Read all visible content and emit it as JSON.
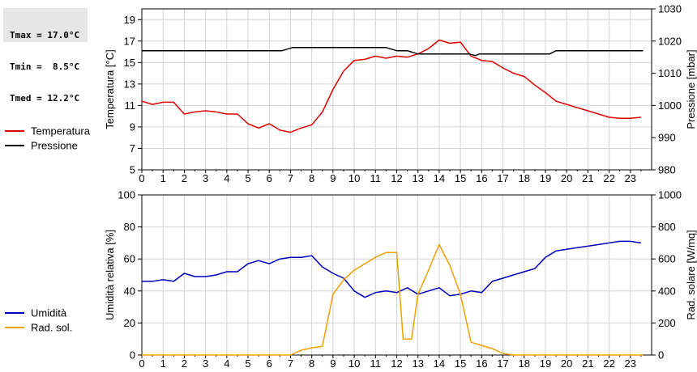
{
  "stats": [
    "Tmax = 17.0°C",
    "Tmin =  8.5°C",
    "Tmed = 12.2°C"
  ],
  "chart_data": [
    {
      "type": "line",
      "x_label_values": [
        0,
        1,
        2,
        3,
        4,
        5,
        6,
        7,
        8,
        9,
        10,
        11,
        12,
        13,
        14,
        15,
        16,
        17,
        18,
        19,
        20,
        21,
        22,
        23
      ],
      "xlim": [
        0,
        24
      ],
      "y_left": {
        "label": "Temperatura [°C]",
        "lim": [
          5,
          20
        ],
        "ticks": [
          5,
          7,
          9,
          11,
          13,
          15,
          17,
          19
        ]
      },
      "y_right": {
        "label": "Pressione [mbar]",
        "lim": [
          980,
          1030
        ],
        "ticks": [
          980,
          990,
          1000,
          1010,
          1020,
          1030
        ]
      },
      "grid": true,
      "legend_placement": "left",
      "series": [
        {
          "name": "Temperatura",
          "color": "#dd0000",
          "axis": "left",
          "x": [
            0,
            0.5,
            1,
            1.5,
            2,
            2.5,
            3,
            3.5,
            4,
            4.5,
            5,
            5.5,
            6,
            6.5,
            7,
            7.5,
            8,
            8.5,
            9,
            9.5,
            10,
            10.5,
            11,
            11.5,
            12,
            12.5,
            13,
            13.5,
            14,
            14.5,
            15,
            15.5,
            16,
            16.5,
            17,
            17.5,
            18,
            18.5,
            19,
            19.5,
            20,
            20.5,
            21,
            21.5,
            22,
            22.5,
            23,
            23.5
          ],
          "y": [
            11.4,
            11.1,
            11.3,
            11.3,
            10.2,
            10.4,
            10.5,
            10.4,
            10.2,
            10.2,
            9.3,
            8.9,
            9.3,
            8.7,
            8.5,
            8.9,
            9.2,
            10.4,
            12.5,
            14.2,
            15.2,
            15.3,
            15.6,
            15.4,
            15.6,
            15.5,
            15.8,
            16.3,
            17.1,
            16.8,
            16.9,
            15.6,
            15.2,
            15.1,
            14.5,
            14.0,
            13.7,
            12.9,
            12.2,
            11.4,
            11.1,
            10.8,
            10.5,
            10.2,
            9.9,
            9.8,
            9.8,
            9.9
          ]
        },
        {
          "name": "Pressione",
          "color": "#000000",
          "axis": "right",
          "x": [
            0,
            6.6,
            7.1,
            11.5,
            12,
            12.5,
            13,
            15.4,
            15.7,
            15.9,
            19.2,
            19.5,
            23.6
          ],
          "y": [
            1017,
            1017,
            1018,
            1018,
            1017,
            1017,
            1016,
            1016,
            1015.5,
            1016,
            1016,
            1017,
            1017
          ]
        }
      ]
    },
    {
      "type": "line",
      "x_label_values": [
        0,
        1,
        2,
        3,
        4,
        5,
        6,
        7,
        8,
        9,
        10,
        11,
        12,
        13,
        14,
        15,
        16,
        17,
        18,
        19,
        20,
        21,
        22,
        23
      ],
      "xlim": [
        0,
        24
      ],
      "y_left": {
        "label": "Umidità relativa [%]",
        "lim": [
          0,
          100
        ],
        "ticks": [
          0,
          20,
          40,
          60,
          80,
          100
        ]
      },
      "y_right": {
        "label": "Rad. solare [W/mq]",
        "lim": [
          0,
          1000
        ],
        "ticks": [
          0,
          200,
          400,
          600,
          800,
          1000
        ]
      },
      "grid": true,
      "legend_placement": "left",
      "series": [
        {
          "name": "Umidità",
          "color": "#0000bb",
          "axis": "left",
          "x": [
            0,
            0.5,
            1,
            1.5,
            2,
            2.5,
            3,
            3.5,
            4,
            4.5,
            5,
            5.5,
            6,
            6.5,
            7,
            7.5,
            8,
            8.5,
            9,
            9.5,
            10,
            10.5,
            11,
            11.5,
            12,
            12.5,
            13,
            13.5,
            14,
            14.5,
            15,
            15.5,
            16,
            16.5,
            17,
            17.5,
            18,
            18.5,
            19,
            19.5,
            20,
            20.5,
            21,
            21.5,
            22,
            22.5,
            23,
            23.5
          ],
          "y": [
            46,
            46,
            47,
            46,
            51,
            49,
            49,
            50,
            52,
            52,
            57,
            59,
            57,
            60,
            61,
            61,
            62,
            55,
            51,
            48,
            40,
            36,
            39,
            40,
            39,
            42,
            38,
            40,
            42,
            37,
            38,
            40,
            39,
            46,
            48,
            50,
            52,
            54,
            61,
            65,
            66,
            67,
            68,
            69,
            70,
            71,
            71,
            70
          ]
        },
        {
          "name": "Rad. sol.",
          "color": "#f0a000",
          "axis": "right",
          "x": [
            0,
            1,
            2,
            3,
            4,
            5,
            6,
            7,
            7.5,
            8,
            8.5,
            9,
            9.5,
            10,
            10.5,
            11,
            11.5,
            12,
            12.3,
            12.7,
            13,
            13.5,
            14,
            14.5,
            15,
            15.5,
            16,
            16.5,
            17,
            17.5,
            18,
            19,
            20,
            21,
            22,
            23,
            23.6
          ],
          "y": [
            0,
            0,
            0,
            0,
            0,
            0,
            0,
            0,
            30,
            45,
            55,
            380,
            470,
            530,
            570,
            610,
            640,
            640,
            100,
            100,
            380,
            530,
            690,
            560,
            380,
            80,
            60,
            40,
            10,
            0,
            0,
            0,
            0,
            0,
            0,
            0,
            0
          ]
        }
      ]
    }
  ]
}
